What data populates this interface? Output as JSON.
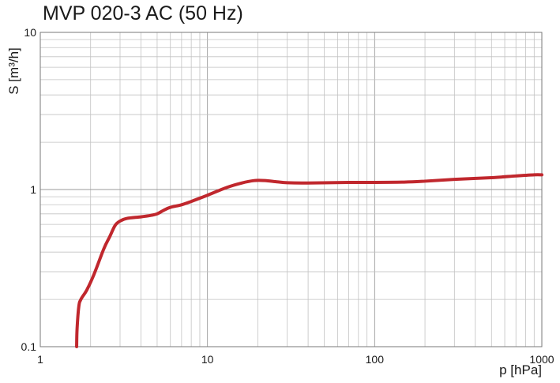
{
  "chart_data": {
    "type": "line",
    "title": "MVP 020-3 AC (50 Hz)",
    "xlabel": "p [hPa]",
    "ylabel": "S  [m³/h]",
    "xscale": "log",
    "yscale": "log",
    "xlim": [
      1,
      1000
    ],
    "ylim": [
      0.1,
      10
    ],
    "xticks": [
      {
        "value": 1,
        "label": "1"
      },
      {
        "value": 10,
        "label": "10"
      },
      {
        "value": 100,
        "label": "100"
      },
      {
        "value": 1000,
        "label": "1000"
      }
    ],
    "yticks": [
      {
        "value": 0.1,
        "label": "0.1"
      },
      {
        "value": 1,
        "label": "1"
      },
      {
        "value": 10,
        "label": "10"
      }
    ],
    "grid": true,
    "series": [
      {
        "color": "#c0272d",
        "points": [
          [
            1.65,
            0.1
          ],
          [
            1.66,
            0.13
          ],
          [
            1.7,
            0.18
          ],
          [
            1.75,
            0.2
          ],
          [
            1.9,
            0.23
          ],
          [
            2.1,
            0.29
          ],
          [
            2.4,
            0.42
          ],
          [
            2.6,
            0.5
          ],
          [
            2.8,
            0.59
          ],
          [
            3.0,
            0.63
          ],
          [
            3.3,
            0.655
          ],
          [
            4.0,
            0.67
          ],
          [
            4.6,
            0.685
          ],
          [
            5.0,
            0.7
          ],
          [
            5.5,
            0.74
          ],
          [
            6.0,
            0.77
          ],
          [
            7.0,
            0.8
          ],
          [
            8.0,
            0.84
          ],
          [
            10,
            0.92
          ],
          [
            13,
            1.03
          ],
          [
            16,
            1.1
          ],
          [
            19,
            1.14
          ],
          [
            22,
            1.14
          ],
          [
            26,
            1.12
          ],
          [
            30,
            1.105
          ],
          [
            40,
            1.1
          ],
          [
            70,
            1.11
          ],
          [
            100,
            1.11
          ],
          [
            150,
            1.115
          ],
          [
            200,
            1.13
          ],
          [
            300,
            1.16
          ],
          [
            500,
            1.19
          ],
          [
            700,
            1.22
          ],
          [
            900,
            1.24
          ],
          [
            1000,
            1.24
          ]
        ]
      }
    ]
  }
}
